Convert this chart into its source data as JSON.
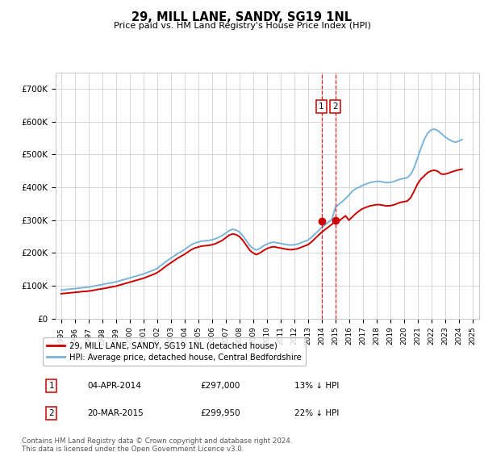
{
  "title": "29, MILL LANE, SANDY, SG19 1NL",
  "subtitle": "Price paid vs. HM Land Registry's House Price Index (HPI)",
  "background_color": "#ffffff",
  "grid_color": "#c8c8c8",
  "ylim": [
    0,
    750000
  ],
  "yticks": [
    0,
    100000,
    200000,
    300000,
    400000,
    500000,
    600000,
    700000
  ],
  "ytick_labels": [
    "£0",
    "£100K",
    "£200K",
    "£300K",
    "£400K",
    "£500K",
    "£600K",
    "£700K"
  ],
  "hpi_years": [
    1995,
    1995.25,
    1995.5,
    1995.75,
    1996,
    1996.25,
    1996.5,
    1996.75,
    1997,
    1997.25,
    1997.5,
    1997.75,
    1998,
    1998.25,
    1998.5,
    1998.75,
    1999,
    1999.25,
    1999.5,
    1999.75,
    2000,
    2000.25,
    2000.5,
    2000.75,
    2001,
    2001.25,
    2001.5,
    2001.75,
    2002,
    2002.25,
    2002.5,
    2002.75,
    2003,
    2003.25,
    2003.5,
    2003.75,
    2004,
    2004.25,
    2004.5,
    2004.75,
    2005,
    2005.25,
    2005.5,
    2005.75,
    2006,
    2006.25,
    2006.5,
    2006.75,
    2007,
    2007.25,
    2007.5,
    2007.75,
    2008,
    2008.25,
    2008.5,
    2008.75,
    2009,
    2009.25,
    2009.5,
    2009.75,
    2010,
    2010.25,
    2010.5,
    2010.75,
    2011,
    2011.25,
    2011.5,
    2011.75,
    2012,
    2012.25,
    2012.5,
    2012.75,
    2013,
    2013.25,
    2013.5,
    2013.75,
    2014,
    2014.25,
    2014.5,
    2014.75,
    2015,
    2015.25,
    2015.5,
    2015.75,
    2016,
    2016.25,
    2016.5,
    2016.75,
    2017,
    2017.25,
    2017.5,
    2017.75,
    2018,
    2018.25,
    2018.5,
    2018.75,
    2019,
    2019.25,
    2019.5,
    2019.75,
    2020,
    2020.25,
    2020.5,
    2020.75,
    2021,
    2021.25,
    2021.5,
    2021.75,
    2022,
    2022.25,
    2022.5,
    2022.75,
    2023,
    2023.25,
    2023.5,
    2023.75,
    2024,
    2024.25
  ],
  "hpi_values": [
    87000,
    88000,
    89500,
    90500,
    91500,
    92500,
    94000,
    95000,
    96000,
    98000,
    100000,
    102000,
    104000,
    106000,
    108000,
    110000,
    112000,
    115000,
    118000,
    121000,
    124000,
    127000,
    130000,
    133000,
    136000,
    140000,
    144000,
    148000,
    153000,
    161000,
    169000,
    177000,
    184000,
    191000,
    198000,
    204000,
    210000,
    218000,
    225000,
    230000,
    233000,
    236000,
    237000,
    238000,
    240000,
    243000,
    248000,
    253000,
    260000,
    268000,
    272000,
    270000,
    264000,
    253000,
    238000,
    223000,
    214000,
    209000,
    214000,
    221000,
    227000,
    231000,
    233000,
    231000,
    229000,
    227000,
    225000,
    224000,
    225000,
    227000,
    231000,
    235000,
    239000,
    247000,
    257000,
    267000,
    277000,
    285000,
    294000,
    302000,
    338000,
    348000,
    356000,
    366000,
    376000,
    388000,
    396000,
    400000,
    406000,
    410000,
    414000,
    416000,
    418000,
    418000,
    416000,
    414000,
    415000,
    417000,
    421000,
    425000,
    427000,
    429000,
    439000,
    459000,
    489000,
    519000,
    546000,
    565000,
    575000,
    577000,
    572000,
    563000,
    554000,
    547000,
    541000,
    537000,
    540000,
    545000
  ],
  "prop_values": [
    76000,
    77000,
    78000,
    79000,
    80000,
    81000,
    82500,
    83000,
    84000,
    85500,
    87500,
    89500,
    91000,
    93000,
    95000,
    97000,
    99000,
    102000,
    105000,
    108000,
    111000,
    114000,
    117000,
    120000,
    123000,
    127000,
    131000,
    135000,
    140000,
    147000,
    155000,
    163000,
    170000,
    177000,
    184000,
    190000,
    196000,
    203000,
    210000,
    215000,
    218000,
    221000,
    222000,
    223000,
    225000,
    228000,
    233000,
    238000,
    246000,
    254000,
    258000,
    256000,
    250000,
    239000,
    224000,
    209000,
    200000,
    195000,
    200000,
    207000,
    213000,
    217000,
    219000,
    217000,
    215000,
    213000,
    211000,
    210000,
    211000,
    213000,
    217000,
    221000,
    225000,
    233000,
    243000,
    253000,
    263000,
    271000,
    279000,
    287000,
    297000,
    297000,
    305000,
    313000,
    299950,
    310000,
    320000,
    328000,
    335000,
    339000,
    343000,
    345000,
    347000,
    347000,
    345000,
    343000,
    344000,
    346000,
    350000,
    354000,
    356000,
    358000,
    368000,
    388000,
    410000,
    425000,
    435000,
    445000,
    450000,
    452000,
    448000,
    440000,
    440000,
    443000,
    447000,
    450000,
    453000,
    455000
  ],
  "sale1_year": 2014.0,
  "sale1_price": 297000,
  "sale2_year": 2015.0,
  "sale2_price": 299950,
  "sale1_date": "04-APR-2014",
  "sale1_price_str": "£297,000",
  "sale1_note": "13% ↓ HPI",
  "sale2_date": "20-MAR-2015",
  "sale2_price_str": "£299,950",
  "sale2_note": "22% ↓ HPI",
  "hpi_color": "#7ab4d8",
  "property_color": "#cc0000",
  "vline_color": "#dd0000",
  "dot_color": "#cc0000",
  "legend_label_property": "29, MILL LANE, SANDY, SG19 1NL (detached house)",
  "legend_label_hpi": "HPI: Average price, detached house, Central Bedfordshire",
  "footer_line1": "Contains HM Land Registry data © Crown copyright and database right 2024.",
  "footer_line2": "This data is licensed under the Open Government Licence v3.0.",
  "xlim_left": 1994.6,
  "xlim_right": 2025.5,
  "xtick_years": [
    1995,
    1996,
    1997,
    1998,
    1999,
    2000,
    2001,
    2002,
    2003,
    2004,
    2005,
    2006,
    2007,
    2008,
    2009,
    2010,
    2011,
    2012,
    2013,
    2014,
    2015,
    2016,
    2017,
    2018,
    2019,
    2020,
    2021,
    2022,
    2023,
    2024,
    2025
  ]
}
